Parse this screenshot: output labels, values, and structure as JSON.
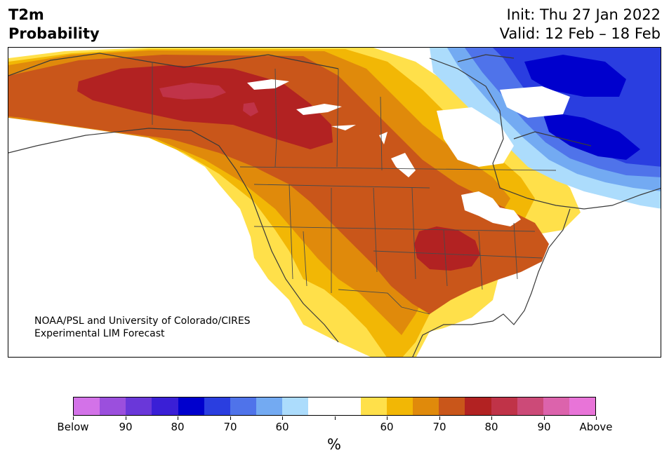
{
  "header": {
    "variable": "T2m",
    "product": "Probability",
    "init": "Init: Thu 27 Jan 2022",
    "valid": "Valid: 12 Feb – 18 Feb"
  },
  "credit": {
    "line1": "NOAA/PSL and University of Colorado/CIRES",
    "line2": "Experimental LIM Forecast"
  },
  "colorbar": {
    "unit": "%",
    "tick_labels": [
      "Below",
      "90",
      "80",
      "70",
      "60",
      "",
      "60",
      "70",
      "80",
      "90",
      "Above"
    ],
    "colors": [
      "#d372e8",
      "#9b4fdd",
      "#6a37d9",
      "#3a1fd6",
      "#0000cd",
      "#2a3ee0",
      "#4f73ea",
      "#73aaf2",
      "#acdcfc",
      "#ffffff",
      "#ffffff",
      "#ffe04a",
      "#f2b705",
      "#e08a0b",
      "#c9561a",
      "#b22222",
      "#c03348",
      "#cc4a78",
      "#dc63ac",
      "#e874d8"
    ]
  },
  "map": {
    "region": "North America",
    "colors": {
      "above_60": "#ffe04a",
      "above_65": "#f2b705",
      "above_70": "#e08a0b",
      "above_75": "#c9561a",
      "above_80": "#b22222",
      "above_85": "#c03348",
      "below_60": "#acdcfc",
      "below_65": "#73aaf2",
      "below_70": "#4f73ea",
      "below_75": "#2a3ee0",
      "below_80": "#0000cd"
    }
  }
}
